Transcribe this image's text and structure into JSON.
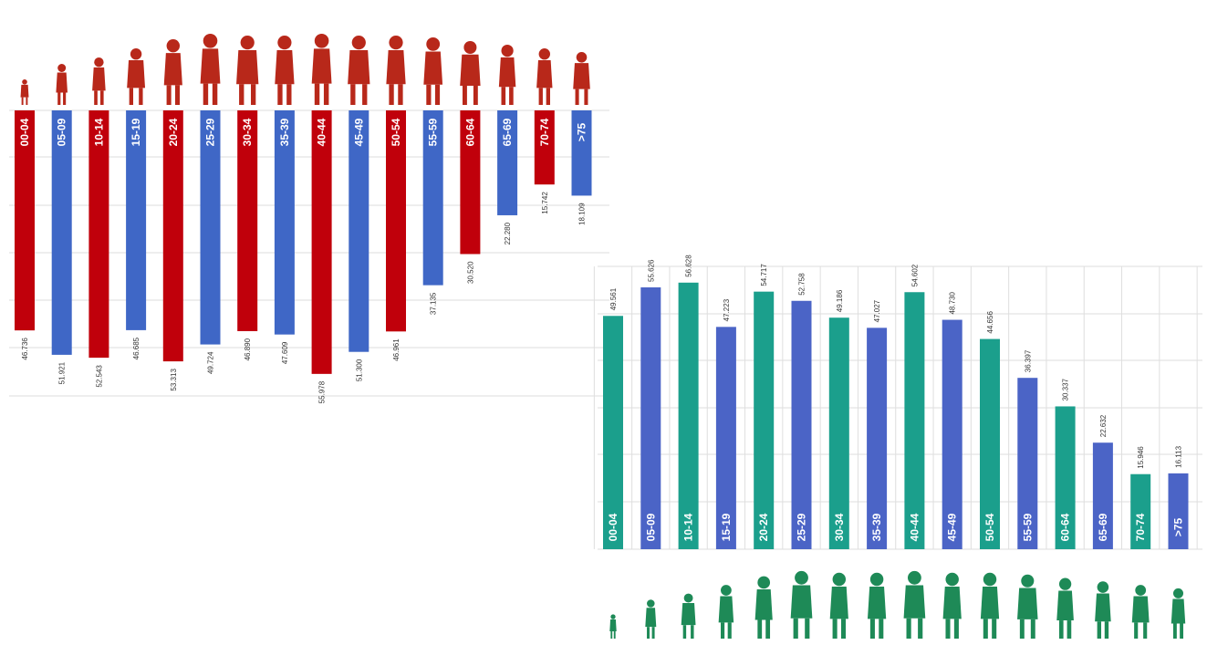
{
  "colors": {
    "female_red": "#c0000b",
    "female_blue": "#3f67c6",
    "female_silhouette": "#b8281a",
    "male_teal": "#1b9f8c",
    "male_blue": "#4b64c6",
    "male_silhouette": "#1e8a57",
    "grid": "#dedede"
  },
  "chart_data": [
    {
      "type": "bar",
      "orientation": "vertical-downward",
      "categories": [
        "00-04",
        "05-09",
        "10-14",
        "15-19",
        "20-24",
        "25-29",
        "30-34",
        "35-39",
        "40-44",
        "45-49",
        "50-54",
        "55-59",
        "60-64",
        "65-69",
        "70-74",
        ">75"
      ],
      "values": [
        46.736,
        51.921,
        52.543,
        46.685,
        53.313,
        49.724,
        46.89,
        47.609,
        55.978,
        51.3,
        46.961,
        37.135,
        30.52,
        22.28,
        15.742,
        18.109
      ],
      "value_labels": [
        "46.736",
        "51.921",
        "52.543",
        "46.685",
        "53.313",
        "49.724",
        "46.890",
        "47.609",
        "55.978",
        "51.300",
        "46.961",
        "37.135",
        "30.520",
        "22.280",
        "15.742",
        "18.109"
      ],
      "bar_colors": [
        "red",
        "blue",
        "red",
        "blue",
        "red",
        "blue",
        "red",
        "blue",
        "red",
        "blue",
        "red",
        "blue",
        "red",
        "blue",
        "red",
        "blue"
      ],
      "icon": "female-silhouette-icon",
      "title": "",
      "xlabel": "",
      "ylabel": "",
      "ylim": [
        0,
        60
      ],
      "grid": true
    },
    {
      "type": "bar",
      "orientation": "vertical-upward",
      "categories": [
        "00-04",
        "05-09",
        "10-14",
        "15-19",
        "20-24",
        "25-29",
        "30-34",
        "35-39",
        "40-44",
        "45-49",
        "50-54",
        "55-59",
        "60-64",
        "65-69",
        "70-74",
        ">75"
      ],
      "values": [
        49.561,
        55.626,
        56.628,
        47.223,
        54.717,
        52.758,
        49.186,
        47.027,
        54.602,
        48.73,
        44.656,
        36.397,
        30.337,
        22.632,
        15.946,
        16.113
      ],
      "value_labels": [
        "49.561",
        "55.626",
        "56.628",
        "47.223",
        "54.717",
        "52.758",
        "49.186",
        "47.027",
        "54.602",
        "48.730",
        "44.656",
        "36.397",
        "30.337",
        "22.632",
        "15.946",
        "16.113"
      ],
      "bar_colors": [
        "teal",
        "blue",
        "teal",
        "blue",
        "teal",
        "blue",
        "teal",
        "blue",
        "teal",
        "blue",
        "teal",
        "blue",
        "teal",
        "blue",
        "teal",
        "blue"
      ],
      "icon": "male-silhouette-icon",
      "title": "",
      "xlabel": "",
      "ylabel": "",
      "ylim": [
        0,
        60
      ],
      "grid": true
    }
  ]
}
